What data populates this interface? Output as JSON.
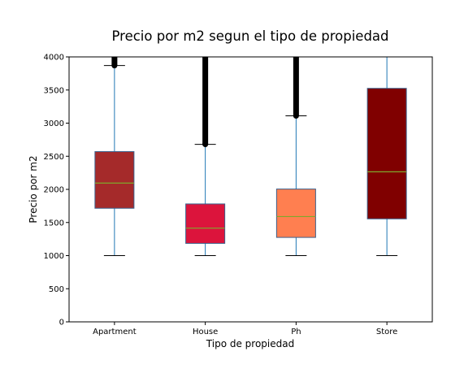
{
  "chart_data": {
    "type": "box",
    "title": "Precio por m2 segun el tipo de propiedad",
    "xlabel": "Tipo de propiedad",
    "ylabel": "Precio por m2",
    "ylim": [
      0,
      4000
    ],
    "yticks": [
      0,
      500,
      1000,
      1500,
      2000,
      2500,
      3000,
      3500,
      4000
    ],
    "grid": false,
    "categories": [
      "Apartment",
      "House",
      "Ph",
      "Store"
    ],
    "boxes": [
      {
        "category": "Apartment",
        "whisker_low": 1000,
        "q1": 1715,
        "median": 2095,
        "q3": 2570,
        "whisker_high": 3870,
        "outliers_from": 3870,
        "outliers_to": 4000,
        "color": "#a52a2a"
      },
      {
        "category": "House",
        "whisker_low": 1000,
        "q1": 1185,
        "median": 1415,
        "q3": 1780,
        "whisker_high": 2680,
        "outliers_from": 2680,
        "outliers_to": 4000,
        "color": "#dc143c"
      },
      {
        "category": "Ph",
        "whisker_low": 1000,
        "q1": 1275,
        "median": 1590,
        "q3": 2005,
        "whisker_high": 3110,
        "outliers_from": 3110,
        "outliers_to": 4000,
        "color": "#ff7f50"
      },
      {
        "category": "Store",
        "whisker_low": 1000,
        "q1": 1555,
        "median": 2265,
        "q3": 3525,
        "whisker_high": 4000,
        "outliers_from": null,
        "outliers_to": null,
        "color": "#800000"
      }
    ],
    "colors": {
      "box_edge": "#3b5f8a",
      "whisker": "#1f77b4",
      "median": "#7fa82c",
      "outlier": "#000000",
      "axis": "#000000"
    }
  }
}
